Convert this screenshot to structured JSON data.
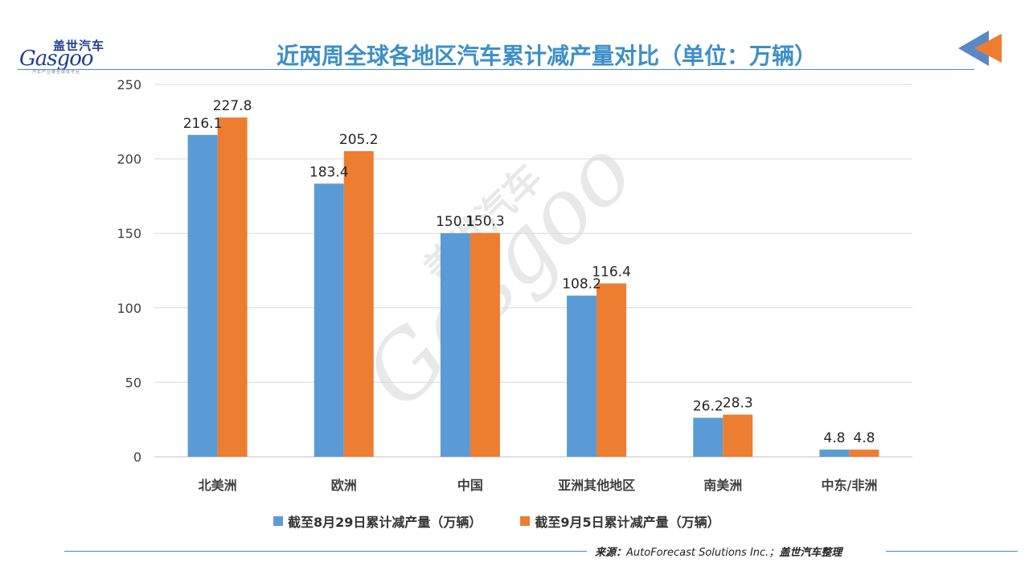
{
  "logo": {
    "cn": "盖世汽车",
    "en": "Gasgoo",
    "sub": "汽车产业链全媒体平台"
  },
  "title": "近两周全球各地区汽车累计减产量对比（单位：万辆）",
  "source": {
    "label": "来源：",
    "text": "AutoForecast Solutions Inc.；",
    "org": "盖世汽车整理"
  },
  "watermark": {
    "cn": "盖世汽车",
    "en": "Gasgoo"
  },
  "colors": {
    "series1": "#5b9bd5",
    "series2": "#ed7d31",
    "accent": "#3d8fc8",
    "grid": "#d9d9d9"
  },
  "chart_data": {
    "type": "bar",
    "categories": [
      "北美洲",
      "欧洲",
      "中国",
      "亚洲其他地区",
      "南美洲",
      "中东/非洲"
    ],
    "series": [
      {
        "name": "截至8月29日累计减产量（万辆）",
        "values": [
          216.1,
          183.4,
          150.1,
          108.2,
          26.2,
          4.8
        ]
      },
      {
        "name": "截至9月5日累计减产量（万辆）",
        "values": [
          227.8,
          205.2,
          150.3,
          116.4,
          28.3,
          4.8
        ]
      }
    ],
    "yticks": [
      0,
      50,
      100,
      150,
      200,
      250
    ],
    "ylim": [
      0,
      250
    ],
    "grid": true,
    "legend": "bottom"
  }
}
